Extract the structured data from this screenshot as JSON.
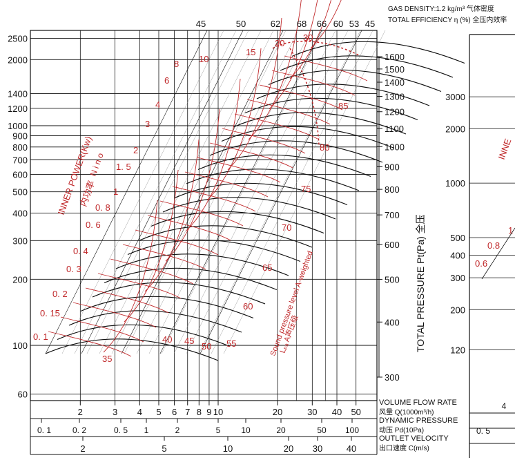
{
  "header": {
    "gas_density": "GAS DENSITY:1.2 kg/m³ 气体密度",
    "total_efficiency": "TOTAL EFFICIENCY η (%) 全压内效率"
  },
  "colors": {
    "grid": "#111111",
    "curves": "#111111",
    "red": "#c0282a",
    "background": "#ffffff"
  },
  "chart_data": [
    {
      "type": "line",
      "title": "",
      "y_axis": {
        "ticks": [
          60,
          100,
          200,
          300,
          400,
          500,
          600,
          700,
          800,
          900,
          1000,
          1200,
          1400,
          2000,
          2500
        ],
        "tick_labels": [
          "60",
          "100",
          "200",
          "300",
          "400",
          "500",
          "600",
          "700",
          "800",
          "900",
          "1000",
          "1200",
          "1400",
          "2000",
          "2500"
        ]
      },
      "x_axis": {
        "flow_ticks": [
          2,
          3,
          4,
          5,
          6,
          7,
          8,
          9,
          10,
          20,
          30,
          40,
          50
        ],
        "flow_tick_labels": [
          "2",
          "3",
          "4",
          "5",
          "6",
          "7",
          "8",
          "9",
          "10",
          "20",
          "30",
          "40",
          "50"
        ],
        "flow_label": "VOLUME FLOW RATE",
        "flow_label_cn": "风量 Q(1000m³/h)",
        "dyn_ticks": [
          0.1,
          0.2,
          0.5,
          1,
          2,
          5,
          10,
          20,
          50,
          100
        ],
        "dyn_tick_labels": [
          "0. 1",
          "0. 2",
          "0. 5",
          "1",
          "2",
          "5",
          "10",
          "20",
          "50",
          "100"
        ],
        "dyn_label": "DYNAMIC PRESSURE",
        "dyn_label_cn": "动压 Pd(10Pa)",
        "vel_ticks": [
          2,
          5,
          10,
          20,
          30,
          40
        ],
        "vel_tick_labels": [
          "2",
          "5",
          "10",
          "20",
          "30",
          "40"
        ],
        "vel_label": "OUTLET VELOCITY",
        "vel_label_cn": "出口速度 C(m/s)"
      },
      "right_axis": {
        "ticks": [
          300,
          400,
          500,
          600,
          700,
          800,
          900,
          1000,
          1100,
          1200,
          1300,
          1400,
          1500,
          1600
        ],
        "tick_labels": [
          "300",
          "400",
          "500",
          "600",
          "700",
          "800",
          "900",
          "1000",
          "1100",
          "1200",
          "1300",
          "1400",
          "1500",
          "1600"
        ]
      },
      "ylabel": "TOTAL PRESSURE Pt(Pa) 全压",
      "efficiency_labels": [
        "45",
        "50",
        "62",
        "68",
        "66",
        "60",
        "53",
        "45"
      ],
      "power_labels": [
        "0. 1",
        "0. 15",
        "0. 2",
        "0. 3",
        "0. 4",
        "0. 6",
        "0. 8",
        "1",
        "1. 5",
        "2",
        "3",
        "4",
        "6",
        "8",
        "10",
        "15",
        "20",
        "30"
      ],
      "power_axis_label": "INNER POWER(Kw)",
      "power_axis_label_cn": "内功率",
      "nno_label": "N i n o",
      "sound_labels": [
        "35",
        "40",
        "45",
        "50",
        "55",
        "60",
        "65",
        "70",
        "75",
        "80",
        "85"
      ],
      "sound_axis_label": "Sound pressure level A-weighted",
      "sound_axis_label_cn": "Lₚₐ A声压级"
    },
    {
      "type": "line",
      "y_axis": {
        "ticks": [
          120,
          200,
          300,
          400,
          500,
          1000,
          2000,
          3000
        ],
        "tick_labels": [
          "120",
          "200",
          "300",
          "400",
          "500",
          "1000",
          "2000",
          "3000"
        ]
      },
      "x_axis": {
        "flow_tick_labels": [
          "4"
        ],
        "dyn_tick_labels": [
          "0. 5"
        ]
      },
      "power_labels": [
        "0.6",
        "0.8",
        "1"
      ],
      "power_axis_label": "INNE"
    }
  ]
}
